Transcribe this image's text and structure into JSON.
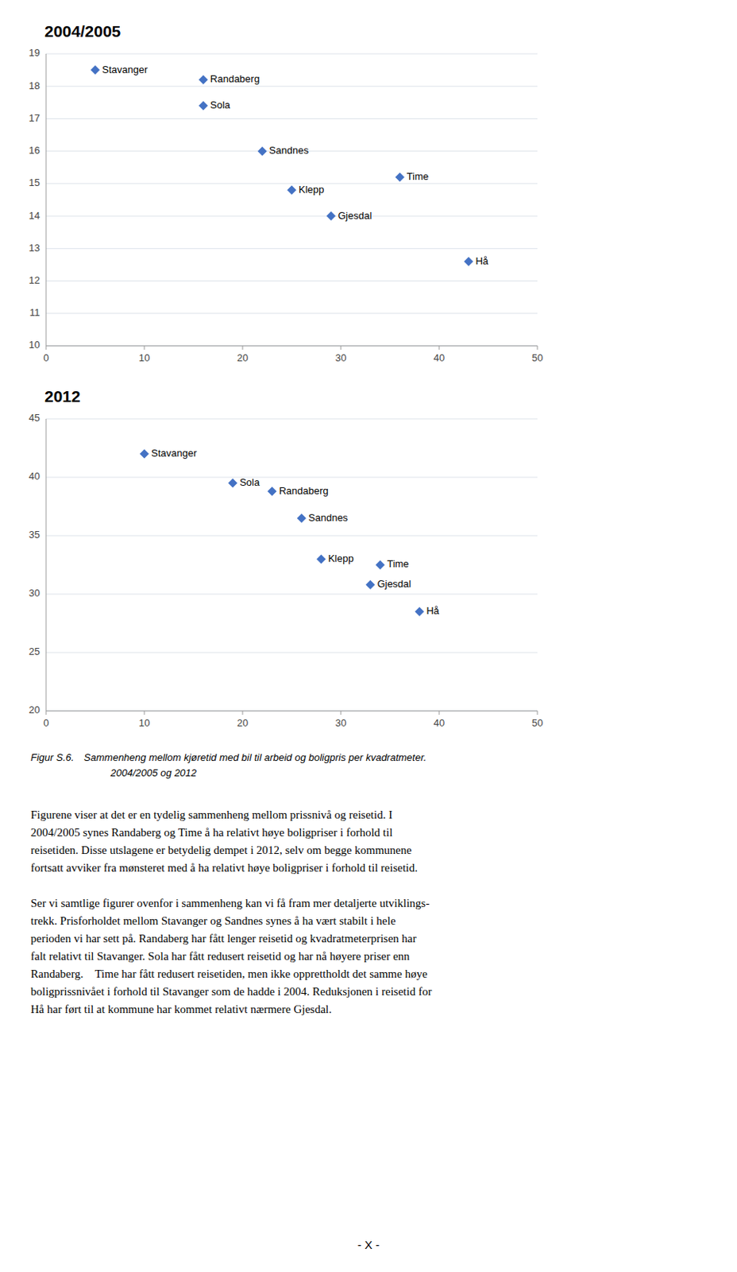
{
  "chart_data": [
    {
      "type": "scatter",
      "title": "2004/2005",
      "color": "#4472C4",
      "marker": "diamond",
      "grid": true,
      "labels": [
        "Stavanger",
        "Randaberg",
        "Sola",
        "Sandnes",
        "Time",
        "Klepp",
        "Gjesdal",
        "Hå"
      ],
      "x": [
        5,
        16,
        16,
        22,
        36,
        25,
        29,
        43
      ],
      "values": [
        18.5,
        18.2,
        17.4,
        16.0,
        15.2,
        14.8,
        14.0,
        12.6
      ],
      "xlim": [
        0,
        50
      ],
      "ylim": [
        10,
        19
      ],
      "xticks": [
        0,
        10,
        20,
        30,
        40,
        50
      ],
      "yticks": [
        10,
        11,
        12,
        13,
        14,
        15,
        16,
        17,
        18,
        19
      ]
    },
    {
      "type": "scatter",
      "title": "2012",
      "color": "#4472C4",
      "marker": "diamond",
      "grid": true,
      "labels": [
        "Stavanger",
        "Sola",
        "Randaberg",
        "Sandnes",
        "Klepp",
        "Time",
        "Gjesdal",
        "Hå"
      ],
      "x": [
        10,
        19,
        23,
        26,
        28,
        34,
        33,
        38
      ],
      "values": [
        42.0,
        39.5,
        38.8,
        36.5,
        33.0,
        32.5,
        30.8,
        28.5
      ],
      "xlim": [
        0,
        50
      ],
      "ylim": [
        20,
        45
      ],
      "xticks": [
        0,
        10,
        20,
        30,
        40,
        50
      ],
      "yticks": [
        20,
        25,
        30,
        35,
        40,
        45
      ]
    }
  ],
  "caption": [
    "Figur S.6. Sammenheng mellom kjøretid med bil til arbeid og boligpris per kvadratmeter.",
    "        2004/2005 og 2012"
  ],
  "body_text": [
    [
      "Figurene viser at det er en tydelig sammenheng mellom prissnivå og reisetid. I",
      "2004/2005 synes Randaberg og Time å ha relativt høye boligpriser i forhold til",
      "reisetiden. Disse utslagene er betydelig dempet i 2012, selv om begge kommunene",
      "fortsatt avviker fra mønsteret med å ha relativt høye boligpriser i forhold til reisetid."
    ],
    [
      "Ser vi samtlige figurer ovenfor i sammenheng kan vi få fram mer detaljerte utviklings-",
      "trekk. Prisforholdet mellom Stavanger og Sandnes synes å ha vært stabilt i hele",
      "perioden vi har sett på. Randaberg har fått lenger reisetid og kvadratmeterprisen har",
      "falt relativt til Stavanger. Sola har fått redusert reisetid og har nå høyere priser enn",
      "Randaberg. Time har fått redusert reisetiden, men ikke opprettholdt det samme høye",
      "boligprissnivået i forhold til Stavanger som de hadde i 2004. Reduksjonen i reisetid for",
      "Hå har ført til at kommune har kommet relativt nærmere Gjesdal."
    ]
  ],
  "footer": "- X -"
}
